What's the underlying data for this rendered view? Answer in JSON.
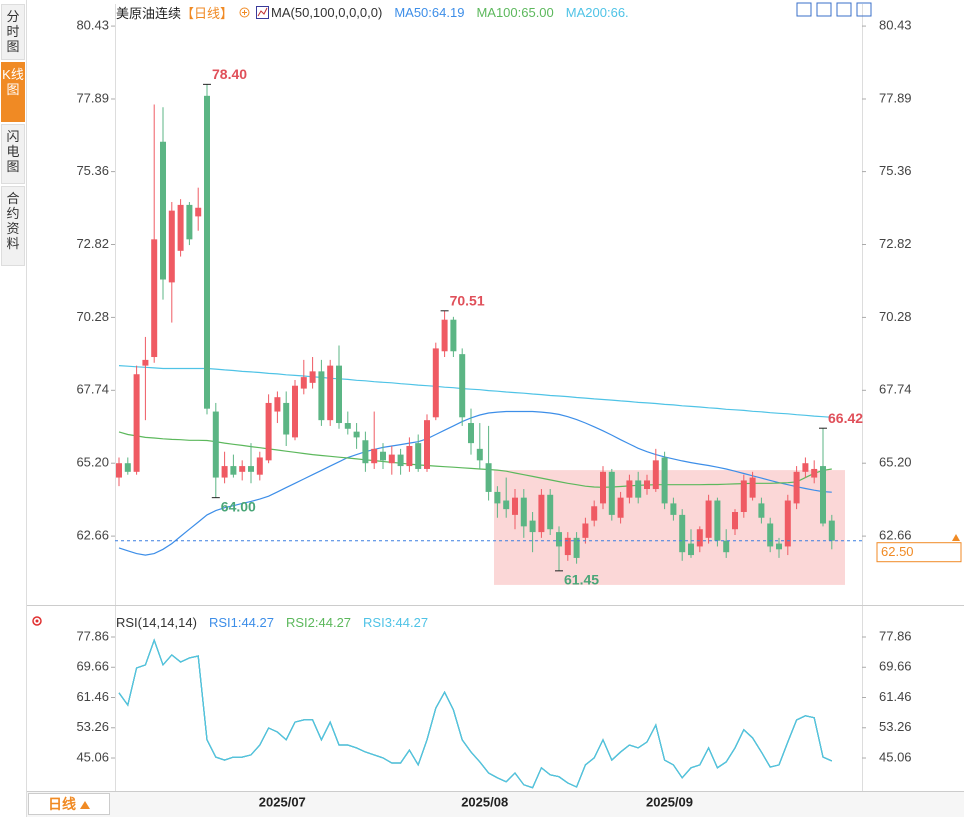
{
  "sidebar_tabs": [
    "分时图",
    "K线图",
    "闪电图",
    "合约资料"
  ],
  "period_button": "日线",
  "chart_data": [
    {
      "type": "candlestick",
      "title": "美原油连续",
      "period": "【日线】",
      "indicator": "MA(50,100,0,0,0,0)",
      "categories": [
        null,
        null,
        null,
        null,
        null,
        null,
        null,
        null,
        null,
        null,
        null,
        null,
        null,
        null,
        null,
        null,
        "2025/07",
        null,
        null,
        null,
        null,
        null,
        null,
        null,
        null,
        null,
        null,
        null,
        null,
        null,
        null,
        null,
        null,
        null,
        null,
        null,
        null,
        null,
        null,
        "2025/08",
        null,
        null,
        null,
        null,
        null,
        null,
        null,
        null,
        null,
        null,
        null,
        null,
        null,
        null,
        null,
        null,
        null,
        null,
        null,
        null,
        "2025/09",
        null,
        null,
        null,
        null,
        null,
        null,
        null,
        null,
        null,
        null,
        null,
        null,
        null,
        null,
        null,
        null,
        null,
        null,
        null,
        null,
        null
      ],
      "open": [
        64.7,
        65.2,
        64.9,
        68.6,
        68.9,
        76.4,
        71.5,
        72.6,
        74.2,
        73.8,
        78.0,
        67.0,
        64.7,
        65.1,
        64.9,
        65.1,
        64.8,
        65.3,
        67.0,
        67.3,
        66.1,
        67.8,
        68.0,
        68.4,
        66.7,
        68.6,
        66.6,
        66.3,
        66.0,
        65.2,
        65.6,
        65.2,
        65.5,
        65.1,
        65.9,
        65.0,
        66.8,
        69.1,
        70.2,
        69.0,
        66.6,
        65.7,
        65.2,
        64.2,
        63.9,
        63.4,
        64.0,
        63.2,
        62.8,
        64.1,
        62.8,
        62.0,
        62.6,
        62.6,
        63.2,
        63.8,
        64.9,
        63.3,
        64.0,
        64.6,
        64.3,
        64.3,
        65.4,
        63.8,
        63.4,
        62.4,
        62.3,
        62.6,
        63.9,
        62.5,
        62.9,
        63.5,
        64.0,
        63.8,
        63.1,
        62.4,
        62.3,
        63.8,
        64.9,
        64.7,
        65.1,
        63.2
      ],
      "high": [
        65.4,
        65.4,
        68.6,
        69.6,
        77.7,
        77.6,
        74.3,
        74.4,
        74.3,
        74.8,
        78.4,
        67.3,
        65.6,
        65.5,
        65.3,
        65.9,
        65.6,
        67.6,
        67.7,
        67.7,
        68.1,
        68.8,
        68.9,
        68.8,
        68.8,
        69.3,
        67.0,
        66.6,
        66.3,
        67.0,
        65.9,
        65.8,
        65.7,
        66.1,
        66.2,
        66.9,
        69.4,
        70.51,
        70.3,
        69.2,
        67.1,
        66.6,
        66.5,
        64.4,
        64.7,
        64.3,
        64.3,
        63.5,
        64.3,
        64.3,
        63.0,
        62.8,
        62.8,
        63.3,
        63.9,
        65.1,
        65.0,
        64.2,
        64.8,
        64.9,
        64.8,
        65.7,
        65.6,
        64.0,
        63.6,
        62.9,
        63.0,
        64.1,
        64.0,
        62.9,
        63.6,
        64.8,
        64.9,
        64.0,
        63.3,
        62.6,
        64.1,
        65.1,
        65.4,
        65.3,
        66.42,
        63.4
      ],
      "low": [
        64.4,
        64.8,
        64.8,
        66.7,
        68.7,
        70.9,
        70.1,
        72.4,
        72.8,
        73.3,
        66.9,
        64.0,
        64.5,
        64.7,
        64.6,
        64.5,
        64.6,
        65.2,
        66.6,
        65.8,
        66.0,
        67.6,
        67.8,
        66.5,
        66.5,
        66.4,
        66.2,
        65.7,
        64.9,
        65.0,
        65.0,
        64.8,
        64.8,
        64.9,
        64.9,
        64.9,
        66.7,
        68.9,
        68.9,
        66.5,
        65.5,
        65.0,
        63.9,
        63.3,
        63.3,
        62.9,
        62.6,
        62.1,
        62.6,
        62.7,
        61.45,
        61.8,
        61.7,
        62.4,
        63.0,
        63.6,
        63.2,
        63.1,
        63.8,
        63.8,
        64.1,
        64.2,
        63.6,
        63.2,
        61.8,
        61.9,
        62.1,
        62.4,
        62.3,
        61.9,
        62.7,
        63.3,
        63.9,
        63.1,
        62.1,
        61.9,
        62.0,
        63.6,
        64.7,
        64.5,
        63.0,
        62.2
      ],
      "close": [
        65.2,
        64.9,
        68.3,
        68.8,
        73.0,
        71.6,
        74.0,
        74.2,
        73.0,
        74.1,
        67.1,
        64.7,
        65.1,
        64.8,
        65.1,
        64.9,
        65.4,
        67.3,
        67.5,
        66.2,
        67.9,
        68.2,
        68.4,
        66.7,
        68.6,
        66.6,
        66.4,
        66.1,
        65.2,
        65.7,
        65.3,
        65.5,
        65.1,
        65.8,
        65.0,
        66.7,
        69.2,
        70.2,
        69.1,
        66.8,
        65.9,
        65.3,
        64.2,
        63.8,
        63.6,
        64.0,
        63.0,
        62.8,
        64.1,
        62.9,
        62.3,
        62.6,
        61.9,
        63.1,
        63.7,
        64.9,
        63.4,
        64.0,
        64.6,
        64.0,
        64.6,
        65.3,
        63.8,
        63.4,
        62.1,
        62.0,
        62.9,
        63.9,
        62.5,
        62.1,
        63.5,
        64.6,
        64.7,
        63.3,
        62.3,
        62.2,
        63.9,
        64.9,
        65.2,
        65.0,
        63.1,
        62.5
      ],
      "up_color": "#ef5a63",
      "down_color": "#5bb584",
      "series": [
        {
          "name": "MA50:64.19",
          "color": "#3d8ee8",
          "values": [
            62.25,
            62.15,
            62.05,
            62.0,
            62.05,
            62.2,
            62.4,
            62.65,
            62.9,
            63.15,
            63.4,
            63.55,
            63.65,
            63.72,
            63.8,
            63.87,
            63.95,
            64.05,
            64.2,
            64.35,
            64.5,
            64.65,
            64.8,
            64.95,
            65.1,
            65.25,
            65.4,
            65.5,
            65.6,
            65.68,
            65.75,
            65.8,
            65.85,
            65.9,
            65.95,
            66.05,
            66.2,
            66.35,
            66.5,
            66.65,
            66.78,
            66.88,
            66.95,
            66.98,
            67.0,
            67.0,
            67.0,
            67.0,
            66.98,
            66.95,
            66.9,
            66.82,
            66.72,
            66.6,
            66.47,
            66.33,
            66.18,
            66.02,
            65.87,
            65.72,
            65.6,
            65.5,
            65.42,
            65.35,
            65.28,
            65.22,
            65.17,
            65.12,
            65.06,
            65.0,
            64.92,
            64.84,
            64.76,
            64.68,
            64.6,
            64.52,
            64.45,
            64.38,
            64.32,
            64.26,
            64.21,
            64.19
          ]
        },
        {
          "name": "MA100:65.00",
          "color": "#5cb85c",
          "values": [
            66.29,
            66.2,
            66.15,
            66.1,
            66.08,
            66.05,
            66.03,
            66.02,
            66.0,
            66.0,
            65.99,
            65.95,
            65.9,
            65.86,
            65.82,
            65.78,
            65.74,
            65.7,
            65.66,
            65.62,
            65.58,
            65.54,
            65.5,
            65.47,
            65.44,
            65.41,
            65.38,
            65.35,
            65.32,
            65.29,
            65.26,
            65.23,
            65.2,
            65.17,
            65.14,
            65.12,
            65.1,
            65.08,
            65.06,
            65.04,
            65.02,
            65.0,
            64.98,
            64.96,
            64.92,
            64.86,
            64.8,
            64.74,
            64.68,
            64.62,
            64.56,
            64.5,
            64.45,
            64.4,
            64.37,
            64.36,
            64.37,
            64.39,
            64.41,
            64.43,
            64.44,
            64.45,
            64.45,
            64.45,
            64.45,
            64.45,
            64.45,
            64.46,
            64.46,
            64.47,
            64.48,
            64.49,
            64.5,
            64.5,
            64.5,
            64.51,
            64.52,
            64.55,
            64.7,
            64.85,
            64.95,
            65.0
          ]
        },
        {
          "name": "MA200:66.",
          "color": "#4fc3e6",
          "values": [
            68.6,
            68.58,
            68.56,
            68.54,
            68.52,
            68.5,
            68.5,
            68.5,
            68.5,
            68.5,
            68.5,
            68.48,
            68.45,
            68.43,
            68.4,
            68.38,
            68.36,
            68.33,
            68.31,
            68.28,
            68.26,
            68.24,
            68.21,
            68.19,
            68.16,
            68.14,
            68.12,
            68.09,
            68.07,
            68.04,
            68.02,
            68.0,
            67.97,
            67.95,
            67.92,
            67.9,
            67.88,
            67.85,
            67.83,
            67.8,
            67.78,
            67.76,
            67.73,
            67.71,
            67.68,
            67.66,
            67.64,
            67.61,
            67.59,
            67.56,
            67.54,
            67.52,
            67.49,
            67.47,
            67.44,
            67.42,
            67.4,
            67.37,
            67.35,
            67.32,
            67.3,
            67.28,
            67.25,
            67.23,
            67.2,
            67.18,
            67.16,
            67.13,
            67.11,
            67.08,
            67.06,
            67.04,
            67.01,
            66.99,
            66.96,
            66.94,
            66.92,
            66.89,
            66.87,
            66.84,
            66.82,
            66.8
          ]
        }
      ],
      "ylim": [
        60.26,
        81.06
      ],
      "yticks": [
        80.43,
        77.89,
        75.36,
        72.82,
        70.28,
        67.74,
        {
          "value": 65.2,
          "label": "65.20"
        },
        62.66
      ],
      "annotations": [
        {
          "value": 78.4,
          "label": "78.40"
        },
        70.51,
        66.42,
        {
          "value": 64.0,
          "label": "64.00"
        },
        61.45
      ],
      "last_price": {
        "value": 62.5,
        "label": "62.50"
      },
      "highlight": {
        "ylim": [
          60.96,
          64.96
        ],
        "color": "#fbd3d3"
      }
    },
    {
      "type": "line",
      "title": "RSI(14,14,14)",
      "series": [
        {
          "name": "RSI1:44.27",
          "color": "#3d8ee8",
          "values": [
            62.7,
            59.4,
            69.5,
            70.3,
            77.0,
            70.3,
            73.0,
            71.1,
            72.2,
            72.7,
            50.0,
            45.3,
            44.5,
            45.3,
            45.3,
            45.9,
            48.6,
            53.2,
            52.1,
            50.0,
            54.8,
            55.4,
            55.4,
            50.0,
            54.8,
            48.6,
            48.6,
            47.8,
            46.7,
            45.9,
            45.1,
            43.7,
            43.7,
            47.2,
            43.2,
            50.0,
            58.6,
            62.9,
            58.1,
            50.0,
            46.7,
            44.0,
            41.0,
            39.7,
            38.6,
            41.0,
            37.8,
            37.0,
            42.4,
            40.5,
            40.0,
            38.3,
            37.2,
            43.2,
            45.1,
            50.0,
            44.5,
            46.7,
            48.6,
            47.8,
            49.4,
            54.0,
            44.5,
            43.2,
            39.7,
            42.4,
            43.2,
            47.8,
            42.4,
            44.0,
            47.8,
            52.7,
            50.5,
            46.7,
            42.6,
            43.2,
            49.4,
            55.4,
            56.5,
            56.0,
            45.3,
            44.27
          ]
        },
        {
          "name": "RSI2:44.27",
          "color": "#5cb85c",
          "values": [
            62.7,
            59.4,
            69.5,
            70.3,
            77.0,
            70.3,
            73.0,
            71.1,
            72.2,
            72.7,
            50.0,
            45.3,
            44.5,
            45.3,
            45.3,
            45.9,
            48.6,
            53.2,
            52.1,
            50.0,
            54.8,
            55.4,
            55.4,
            50.0,
            54.8,
            48.6,
            48.6,
            47.8,
            46.7,
            45.9,
            45.1,
            43.7,
            43.7,
            47.2,
            43.2,
            50.0,
            58.6,
            62.9,
            58.1,
            50.0,
            46.7,
            44.0,
            41.0,
            39.7,
            38.6,
            41.0,
            37.8,
            37.0,
            42.4,
            40.5,
            40.0,
            38.3,
            37.2,
            43.2,
            45.1,
            50.0,
            44.5,
            46.7,
            48.6,
            47.8,
            49.4,
            54.0,
            44.5,
            43.2,
            39.7,
            42.4,
            43.2,
            47.8,
            42.4,
            44.0,
            47.8,
            52.7,
            50.5,
            46.7,
            42.6,
            43.2,
            49.4,
            55.4,
            56.5,
            56.0,
            45.3,
            44.27
          ]
        },
        {
          "name": "RSI3:44.27",
          "color": "#4fc3e6",
          "values": [
            62.7,
            59.4,
            69.5,
            70.3,
            77.0,
            70.3,
            73.0,
            71.1,
            72.2,
            72.7,
            50.0,
            45.3,
            44.5,
            45.3,
            45.3,
            45.9,
            48.6,
            53.2,
            52.1,
            50.0,
            54.8,
            55.4,
            55.4,
            50.0,
            54.8,
            48.6,
            48.6,
            47.8,
            46.7,
            45.9,
            45.1,
            43.7,
            43.7,
            47.2,
            43.2,
            50.0,
            58.6,
            62.9,
            58.1,
            50.0,
            46.7,
            44.0,
            41.0,
            39.7,
            38.6,
            41.0,
            37.8,
            37.0,
            42.4,
            40.5,
            40.0,
            38.3,
            37.2,
            43.2,
            45.1,
            50.0,
            44.5,
            46.7,
            48.6,
            47.8,
            49.4,
            54.0,
            44.5,
            43.2,
            39.7,
            42.4,
            43.2,
            47.8,
            42.4,
            44.0,
            47.8,
            52.7,
            50.5,
            46.7,
            42.6,
            43.2,
            49.4,
            55.4,
            56.5,
            56.0,
            45.3,
            44.27
          ]
        }
      ],
      "ylim": [
        36.39,
        84.64
      ],
      "yticks": [
        77.86,
        69.66,
        61.46,
        53.26,
        45.06
      ]
    }
  ]
}
